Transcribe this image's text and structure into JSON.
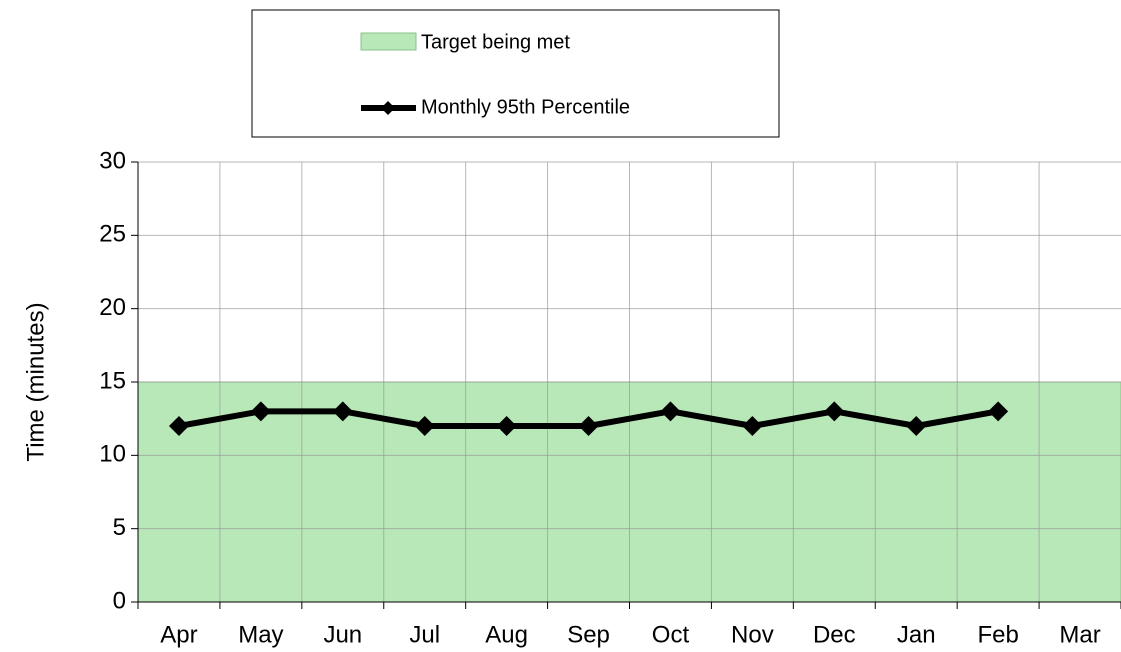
{
  "chart_data": {
    "type": "line",
    "ylabel": "Time (minutes)",
    "categories": [
      "Apr",
      "May",
      "Jun",
      "Jul",
      "Aug",
      "Sep",
      "Oct",
      "Nov",
      "Dec",
      "Jan",
      "Feb",
      "Mar"
    ],
    "series": [
      {
        "name": "Monthly 95th Percentile",
        "color": "#000000",
        "values": [
          12,
          13,
          13,
          12,
          12,
          12,
          13,
          12,
          13,
          12,
          13,
          null
        ]
      }
    ],
    "target": {
      "name": "Target being met",
      "range": [
        0,
        15
      ],
      "color": "#b8e8b8"
    },
    "ylim": [
      0,
      30
    ],
    "yticks": [
      0,
      5,
      10,
      15,
      20,
      25,
      30
    ],
    "grid": true
  }
}
